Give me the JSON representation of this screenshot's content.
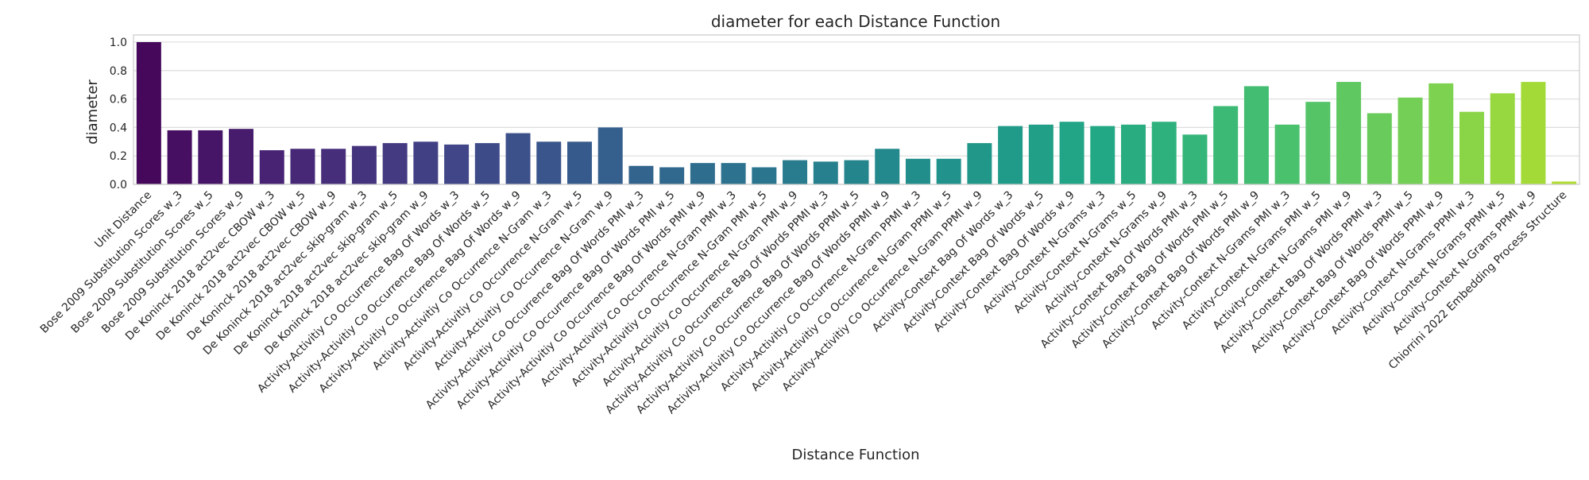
{
  "chart_data": {
    "type": "bar",
    "title": "diameter for each Distance Function",
    "xlabel": "Distance Function",
    "ylabel": "diameter",
    "ylim": [
      0,
      1.05
    ],
    "yticks": [
      "0.0",
      "0.2",
      "0.4",
      "0.6",
      "0.8",
      "1.0"
    ],
    "grid": true,
    "legend": "none",
    "palette": "viridis",
    "categories": [
      "Unit Distance",
      "Bose 2009 Substitution Scores w_3",
      "Bose 2009 Substitution Scores w_5",
      "Bose 2009 Substitution Scores w_9",
      "De Koninck 2018 act2vec CBOW w_3",
      "De Koninck 2018 act2vec CBOW w_5",
      "De Koninck 2018 act2vec CBOW w_9",
      "De Koninck 2018 act2vec skip-gram w_3",
      "De Koninck 2018 act2vec skip-gram w_5",
      "De Koninck 2018 act2vec skip-gram w_9",
      "Activity-Activitiy Co Occurrence Bag Of Words w_3",
      "Activity-Activitiy Co Occurrence Bag Of Words w_5",
      "Activity-Activitiy Co Occurrence Bag Of Words w_9",
      "Activity-Activitiy Co Occurrence N-Gram w_3",
      "Activity-Activitiy Co Occurrence N-Gram w_5",
      "Activity-Activitiy Co Occurrence N-Gram w_9",
      "Activity-Activitiy Co Occurrence Bag Of Words PMI w_3",
      "Activity-Activitiy Co Occurrence Bag Of Words PMI w_5",
      "Activity-Activitiy Co Occurrence Bag Of Words PMI w_9",
      "Activity-Activitiy Co Occurrence N-Gram PMI w_3",
      "Activity-Activitiy Co Occurrence N-Gram PMI w_5",
      "Activity-Activitiy Co Occurrence N-Gram PMI w_9",
      "Activity-Activitiy Co Occurrence Bag Of Words PPMI w_3",
      "Activity-Activitiy Co Occurrence Bag Of Words PPMI w_5",
      "Activity-Activitiy Co Occurrence Bag Of Words PPMI w_9",
      "Activity-Activitiy Co Occurrence N-Gram PPMI w_3",
      "Activity-Activitiy Co Occurrence N-Gram PPMI w_5",
      "Activity-Activitiy Co Occurrence N-Gram PPMI w_9",
      "Activity-Context Bag Of Words w_3",
      "Activity-Context Bag Of Words w_5",
      "Activity-Context Bag Of Words w_9",
      "Activity-Context N-Grams w_3",
      "Activity-Context N-Grams w_5",
      "Activity-Context N-Grams w_9",
      "Activity-Context Bag Of Words PMI w_3",
      "Activity-Context Bag Of Words PMI w_5",
      "Activity-Context Bag Of Words PMI w_9",
      "Activity-Context N-Grams PMI w_3",
      "Activity-Context N-Grams PMI w_5",
      "Activity-Context N-Grams PMI w_9",
      "Activity-Context Bag Of Words PPMI w_3",
      "Activity-Context Bag Of Words PPMI w_5",
      "Activity-Context Bag Of Words PPMI w_9",
      "Activity-Context N-Grams PPMI w_3",
      "Activity-Context N-Grams PPMI w_5",
      "Activity-Context N-Grams PPMI w_9",
      "Chiorrini 2022 Embedding Process Structure"
    ],
    "values": [
      1.0,
      0.38,
      0.38,
      0.39,
      0.24,
      0.25,
      0.25,
      0.27,
      0.29,
      0.3,
      0.28,
      0.29,
      0.36,
      0.3,
      0.3,
      0.4,
      0.13,
      0.12,
      0.15,
      0.15,
      0.12,
      0.17,
      0.16,
      0.17,
      0.25,
      0.18,
      0.18,
      0.29,
      0.41,
      0.42,
      0.44,
      0.41,
      0.42,
      0.44,
      0.35,
      0.55,
      0.69,
      0.42,
      0.58,
      0.72,
      0.5,
      0.61,
      0.71,
      0.51,
      0.64,
      0.72,
      0.02
    ]
  }
}
